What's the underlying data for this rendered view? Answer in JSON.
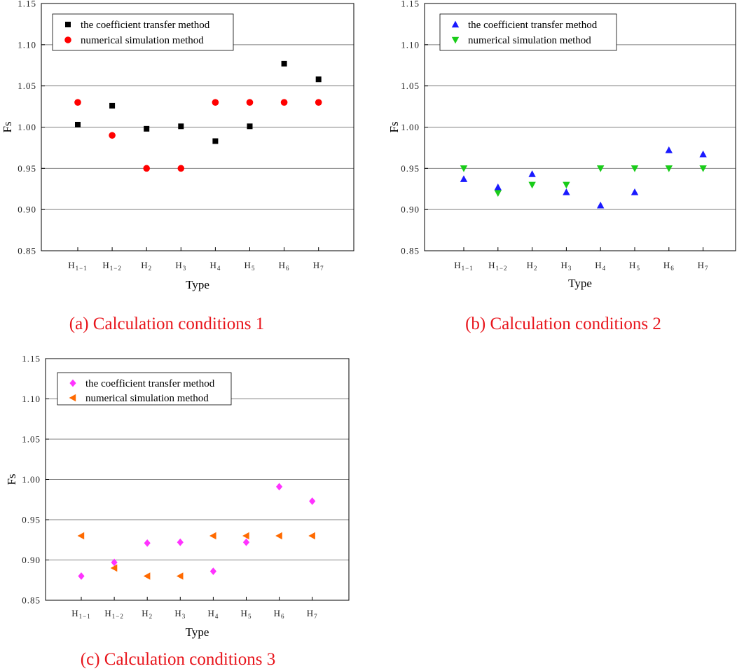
{
  "colors": {
    "square": "#000000",
    "circle": "#ff0000",
    "up_triangle": "#1a1aff",
    "down_triangle": "#19cc19",
    "diamond": "#ff33ff",
    "left_triangle": "#ff6a00",
    "caption": "#e8141b",
    "grid": "#808080"
  },
  "chart_data": [
    {
      "type": "scatter",
      "caption": "(a) Calculation conditions 1",
      "xlabel": "Type",
      "ylabel": "Fs",
      "ylim": [
        0.85,
        1.15
      ],
      "yticks": [
        "0.85",
        "0.90",
        "0.95",
        "1.00",
        "1.05",
        "1.10",
        "1.15"
      ],
      "grid": "horizontal",
      "legend_position": "top-left",
      "categories": [
        {
          "base": "H",
          "sub": "1−1"
        },
        {
          "base": "H",
          "sub": "1−2"
        },
        {
          "base": "H",
          "sub": "2"
        },
        {
          "base": "H",
          "sub": "3"
        },
        {
          "base": "H",
          "sub": "4"
        },
        {
          "base": "H",
          "sub": "5"
        },
        {
          "base": "H",
          "sub": "6"
        },
        {
          "base": "H",
          "sub": "7"
        }
      ],
      "series": [
        {
          "name": "the coefficient transfer method",
          "marker": "square",
          "values": [
            1.003,
            1.026,
            0.998,
            1.001,
            0.983,
            1.001,
            1.077,
            1.058
          ]
        },
        {
          "name": "numerical simulation method",
          "marker": "circle",
          "values": [
            1.03,
            0.99,
            0.95,
            0.95,
            1.03,
            1.03,
            1.03,
            1.03
          ]
        }
      ]
    },
    {
      "type": "scatter",
      "caption": "(b) Calculation conditions 2",
      "xlabel": "Type",
      "ylabel": "Fs",
      "ylim": [
        0.85,
        1.15
      ],
      "yticks": [
        "0.85",
        "0.90",
        "0.95",
        "1.00",
        "1.05",
        "1.10",
        "1.15"
      ],
      "grid": "horizontal",
      "legend_position": "top-left",
      "categories": [
        {
          "base": "H",
          "sub": "1−1"
        },
        {
          "base": "H",
          "sub": "1−2"
        },
        {
          "base": "H",
          "sub": "2"
        },
        {
          "base": "H",
          "sub": "3"
        },
        {
          "base": "H",
          "sub": "4"
        },
        {
          "base": "H",
          "sub": "5"
        },
        {
          "base": "H",
          "sub": "6"
        },
        {
          "base": "H",
          "sub": "7"
        }
      ],
      "series": [
        {
          "name": "the coefficient transfer method",
          "marker": "up_triangle",
          "values": [
            0.937,
            0.927,
            0.943,
            0.921,
            0.905,
            0.921,
            0.972,
            0.967
          ]
        },
        {
          "name": "numerical simulation method",
          "marker": "down_triangle",
          "values": [
            0.95,
            0.92,
            0.93,
            0.93,
            0.95,
            0.95,
            0.95,
            0.95
          ]
        }
      ]
    },
    {
      "type": "scatter",
      "caption": "(c) Calculation conditions 3",
      "xlabel": "Type",
      "ylabel": "Fs",
      "ylim": [
        0.85,
        1.15
      ],
      "yticks": [
        "0.85",
        "0.90",
        "0.95",
        "1.00",
        "1.05",
        "1.10",
        "1.15"
      ],
      "grid": "horizontal",
      "legend_position": "top-left",
      "categories": [
        {
          "base": "H",
          "sub": "1−1"
        },
        {
          "base": "H",
          "sub": "1−2"
        },
        {
          "base": "H",
          "sub": "2"
        },
        {
          "base": "H",
          "sub": "3"
        },
        {
          "base": "H",
          "sub": "4"
        },
        {
          "base": "H",
          "sub": "5"
        },
        {
          "base": "H",
          "sub": "6"
        },
        {
          "base": "H",
          "sub": "7"
        }
      ],
      "series": [
        {
          "name": "the coefficient transfer method",
          "marker": "diamond",
          "values": [
            0.88,
            0.897,
            0.921,
            0.922,
            0.886,
            0.922,
            0.991,
            0.973
          ]
        },
        {
          "name": "numerical simulation method",
          "marker": "left_triangle",
          "values": [
            0.93,
            0.89,
            0.88,
            0.88,
            0.93,
            0.93,
            0.93,
            0.93
          ]
        }
      ]
    }
  ]
}
